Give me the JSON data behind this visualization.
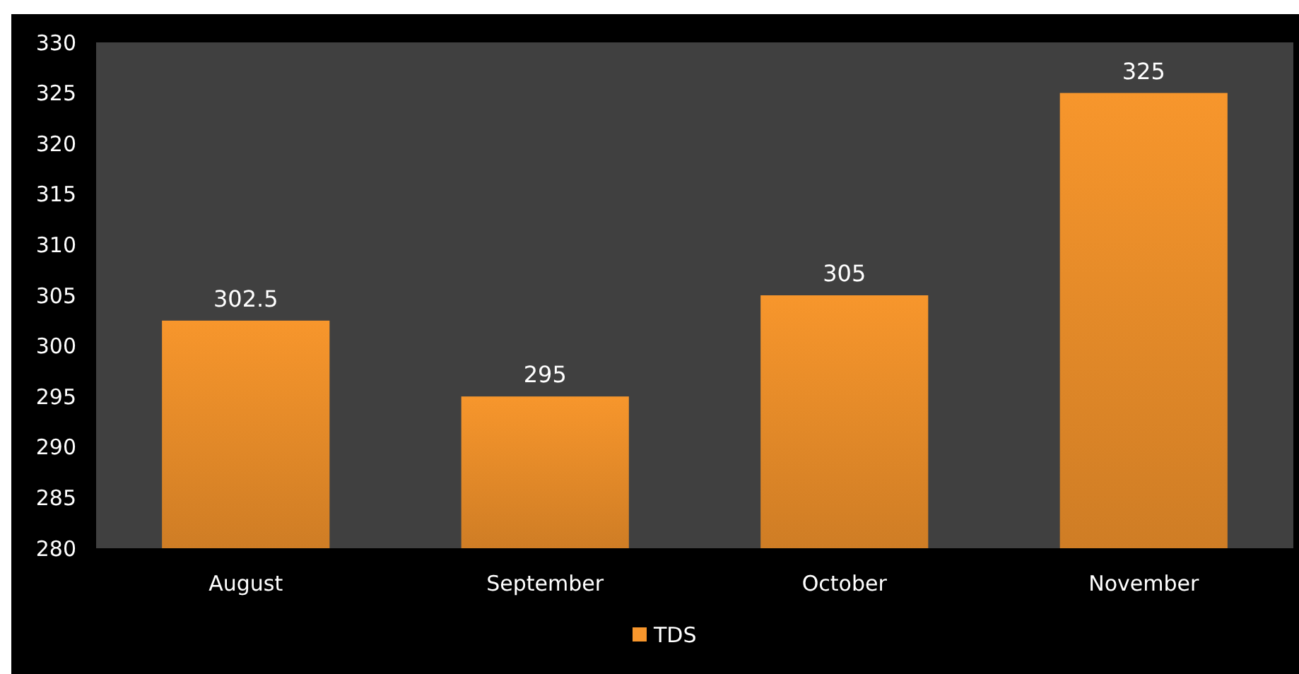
{
  "chart_data": {
    "type": "bar",
    "categories": [
      "August",
      "September",
      "October",
      "November"
    ],
    "series": [
      {
        "name": "TDS",
        "color": "#f7962c",
        "values": [
          302.5,
          295,
          305,
          325
        ]
      }
    ],
    "ylim": [
      280,
      330
    ],
    "yticks": [
      280,
      285,
      290,
      295,
      300,
      305,
      310,
      315,
      320,
      325,
      330
    ],
    "grid": false,
    "legend": "bottom",
    "data_labels": true
  }
}
